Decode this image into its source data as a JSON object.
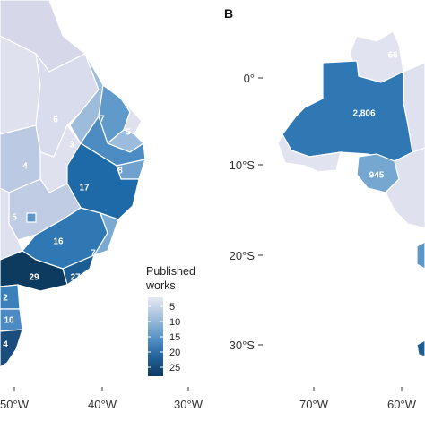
{
  "panelB": {
    "label": "B"
  },
  "panelA": {
    "x_axis_labels": [
      "50°W",
      "40°W",
      "30°W"
    ],
    "state_values": [
      "6",
      "7",
      "3",
      "5",
      "4",
      "8",
      "17",
      "5",
      "16",
      "7",
      "29",
      "27",
      "2",
      "10",
      "4"
    ]
  },
  "panelB_map": {
    "x_axis_labels": [
      "70°W",
      "60°W"
    ],
    "y_axis_labels": [
      "0°",
      "10°S",
      "20°S",
      "30°S"
    ],
    "state_values": [
      "2,806",
      "945",
      "66"
    ]
  },
  "legend": {
    "title_line1": "Published",
    "title_line2": "works",
    "tick_labels": [
      "5",
      "10",
      "15",
      "20",
      "25"
    ],
    "gradient_colors": [
      "#e7e8f3",
      "#9bbcdc",
      "#4d8cc3",
      "#1f5f93",
      "#0d3a5f"
    ]
  }
}
